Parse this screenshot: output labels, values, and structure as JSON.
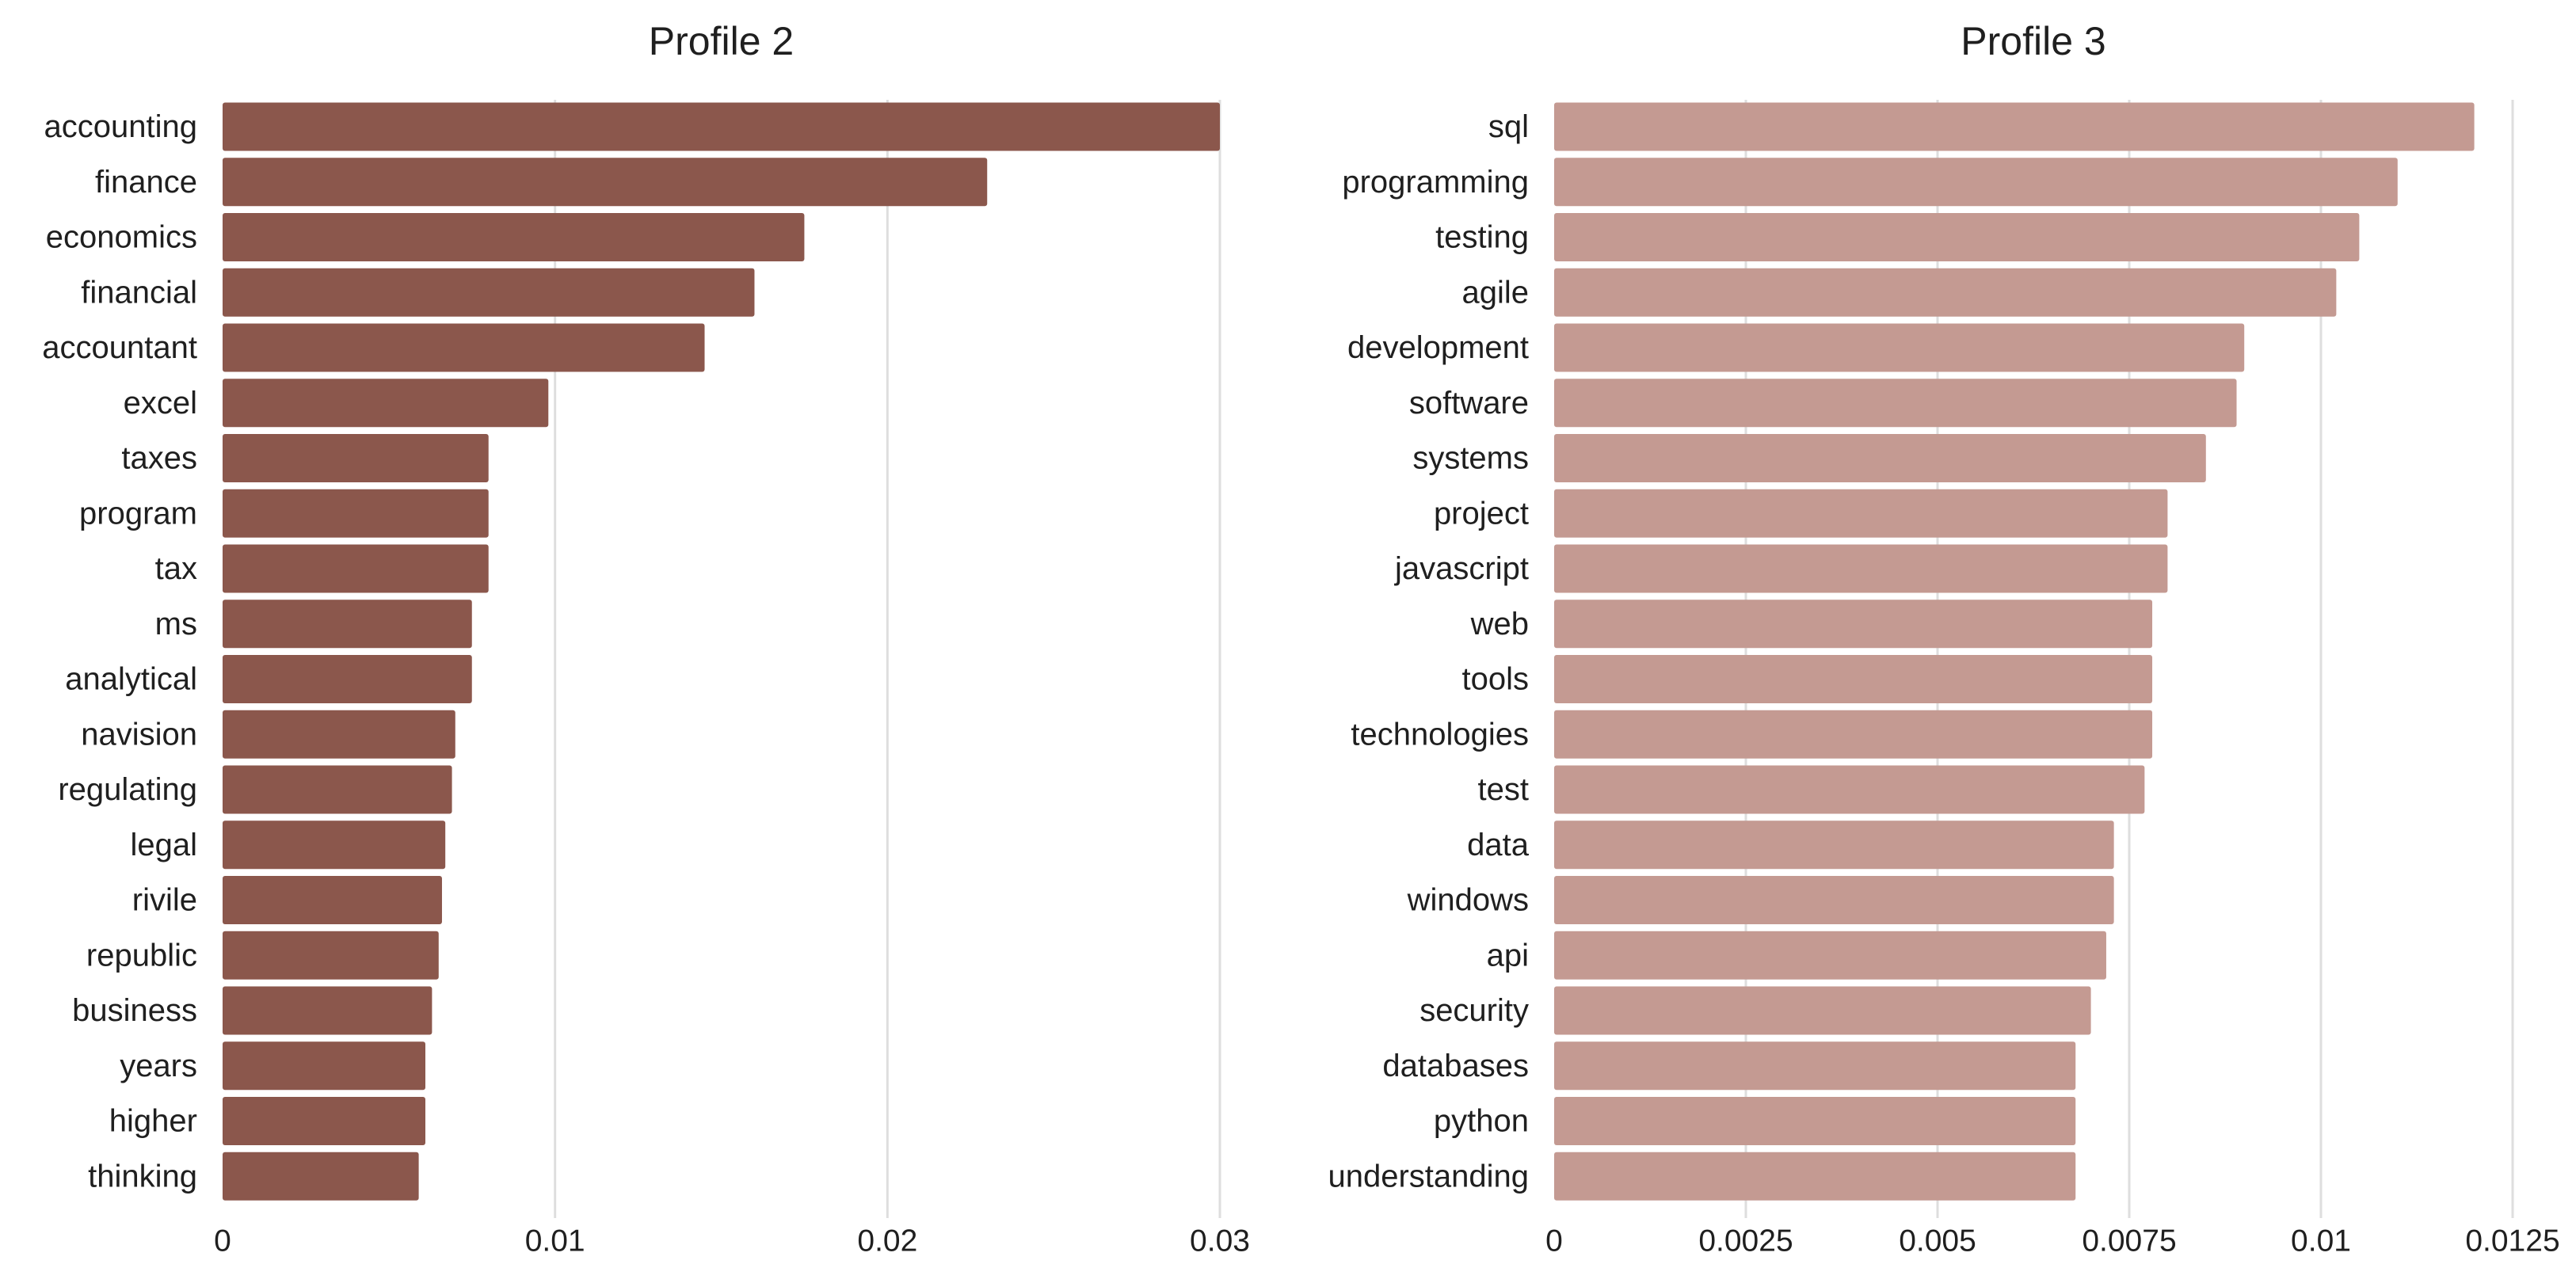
{
  "chart_data": [
    {
      "type": "bar",
      "orientation": "horizontal",
      "title": "Profile 2",
      "color": "#8b574c",
      "xlabel": "",
      "ylabel": "",
      "xlim": [
        0,
        0.03
      ],
      "ticks": [
        0,
        0.01,
        0.02,
        0.03
      ],
      "tick_labels": [
        "0",
        "0.01",
        "0.02",
        "0.03"
      ],
      "grid": true,
      "categories": [
        "accounting",
        "finance",
        "economics",
        "financial",
        "accountant",
        "excel",
        "taxes",
        "program",
        "tax",
        "ms",
        "analytical",
        "navision",
        "regulating",
        "legal",
        "rivile",
        "republic",
        "business",
        "years",
        "higher",
        "thinking"
      ],
      "values": [
        0.03,
        0.023,
        0.0175,
        0.016,
        0.0145,
        0.0098,
        0.008,
        0.008,
        0.008,
        0.0075,
        0.0075,
        0.007,
        0.0069,
        0.0067,
        0.0066,
        0.0065,
        0.0063,
        0.0061,
        0.0061,
        0.0059
      ]
    },
    {
      "type": "bar",
      "orientation": "horizontal",
      "title": "Profile 3",
      "color": "#c49a92",
      "xlabel": "",
      "ylabel": "",
      "xlim": [
        0,
        0.0125
      ],
      "ticks": [
        0,
        0.0025,
        0.005,
        0.0075,
        0.01,
        0.0125
      ],
      "tick_labels": [
        "0",
        "0.0025",
        "0.005",
        "0.0075",
        "0.01",
        "0.0125"
      ],
      "grid": true,
      "categories": [
        "sql",
        "programming",
        "testing",
        "agile",
        "development",
        "software",
        "systems",
        "project",
        "javascript",
        "web",
        "tools",
        "technologies",
        "test",
        "data",
        "windows",
        "api",
        "security",
        "databases",
        "python",
        "understanding"
      ],
      "values": [
        0.012,
        0.011,
        0.0105,
        0.0102,
        0.009,
        0.0089,
        0.0085,
        0.008,
        0.008,
        0.0078,
        0.0078,
        0.0078,
        0.0077,
        0.0073,
        0.0073,
        0.0072,
        0.007,
        0.0068,
        0.0068,
        0.0068
      ]
    }
  ]
}
